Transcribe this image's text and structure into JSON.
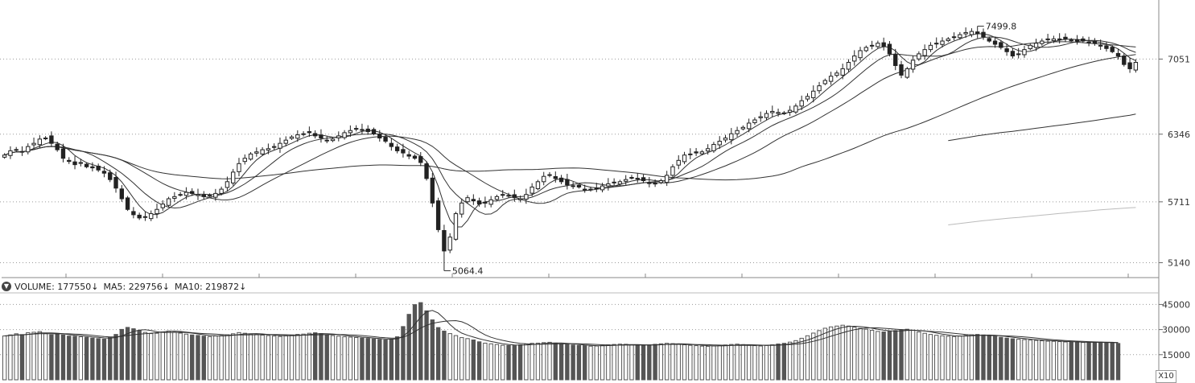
{
  "chart_data": {
    "type": "candlestick",
    "price_axis": {
      "ticks": [
        5140,
        5711,
        6346,
        7051
      ],
      "range": [
        5000,
        7560
      ]
    },
    "annotations": {
      "high": {
        "value": 7499.8,
        "label": "7499.8"
      },
      "low": {
        "value": 5064.4,
        "label": "5064.4"
      }
    },
    "price_series": {
      "close": [
        6150,
        6190,
        6200,
        6180,
        6230,
        6260,
        6300,
        6310,
        6260,
        6200,
        6120,
        6090,
        6060,
        6080,
        6040,
        6030,
        6010,
        5980,
        5920,
        5840,
        5740,
        5640,
        5590,
        5560,
        5570,
        5600,
        5640,
        5690,
        5740,
        5760,
        5780,
        5800,
        5790,
        5780,
        5760,
        5770,
        5790,
        5830,
        5900,
        5990,
        6070,
        6120,
        6160,
        6180,
        6200,
        6210,
        6230,
        6260,
        6290,
        6320,
        6340,
        6350,
        6360,
        6330,
        6310,
        6290,
        6300,
        6330,
        6360,
        6380,
        6400,
        6390,
        6370,
        6350,
        6310,
        6280,
        6230,
        6190,
        6170,
        6140,
        6120,
        6080,
        5930,
        5700,
        5450,
        5250,
        5380,
        5600,
        5700,
        5750,
        5720,
        5690,
        5700,
        5730,
        5760,
        5780,
        5770,
        5750,
        5740,
        5780,
        5850,
        5900,
        5950,
        5960,
        5930,
        5900,
        5870,
        5860,
        5850,
        5830,
        5830,
        5840,
        5860,
        5880,
        5890,
        5900,
        5920,
        5940,
        5930,
        5910,
        5890,
        5880,
        5910,
        5960,
        6040,
        6100,
        6150,
        6160,
        6170,
        6180,
        6210,
        6250,
        6280,
        6310,
        6350,
        6380,
        6410,
        6450,
        6480,
        6510,
        6540,
        6560,
        6550,
        6540,
        6570,
        6610,
        6660,
        6700,
        6750,
        6800,
        6850,
        6890,
        6920,
        6960,
        7020,
        7080,
        7130,
        7160,
        7180,
        7200,
        7170,
        7100,
        6990,
        6900,
        6960,
        7040,
        7100,
        7140,
        7180,
        7200,
        7220,
        7240,
        7260,
        7280,
        7300,
        7310,
        7290,
        7260,
        7220,
        7190,
        7160,
        7120,
        7080,
        7100,
        7140,
        7180,
        7200,
        7220,
        7240,
        7240,
        7240,
        7240,
        7230,
        7220,
        7220,
        7210,
        7200,
        7180,
        7150,
        7120,
        7080,
        7000,
        6960,
        7020
      ],
      "ma_lengths": [
        5,
        10,
        20,
        60,
        120,
        250
      ]
    },
    "volume": {
      "label": "VOLUME:",
      "value": "177550",
      "ma5_label": "MA5:",
      "ma5": "229756",
      "ma10_label": "MA10:",
      "ma10": "219872",
      "axis_ticks": [
        15000,
        30000,
        45000
      ],
      "scale": "X10",
      "values": [
        26200,
        26800,
        27500,
        27000,
        28100,
        28400,
        28800,
        27600,
        26900,
        27400,
        26800,
        26100,
        26000,
        25700,
        25400,
        24900,
        24600,
        24300,
        25200,
        27100,
        30100,
        31300,
        30500,
        29400,
        28300,
        27600,
        27800,
        28600,
        29100,
        28400,
        27900,
        27300,
        26800,
        26500,
        26100,
        25800,
        26200,
        26400,
        26900,
        27500,
        28200,
        27800,
        27300,
        27100,
        26700,
        26400,
        26100,
        25900,
        26300,
        26700,
        27100,
        27300,
        27800,
        28100,
        27600,
        26900,
        26400,
        26100,
        25700,
        25500,
        25300,
        24900,
        24700,
        24400,
        24100,
        23800,
        24300,
        25700,
        31800,
        39100,
        44900,
        46100,
        41200,
        35800,
        31200,
        29100,
        27600,
        26400,
        25200,
        24600,
        23800,
        22700,
        21900,
        21500,
        21100,
        20600,
        20500,
        20400,
        20900,
        21400,
        21800,
        21900,
        22200,
        22400,
        21900,
        21400,
        21100,
        20800,
        20500,
        20400,
        20100,
        20200,
        20500,
        20900,
        21100,
        21300,
        21200,
        20900,
        20600,
        20500,
        20800,
        21200,
        21500,
        21800,
        21600,
        21300,
        20900,
        20600,
        20400,
        20100,
        20000,
        20200,
        20500,
        20800,
        21100,
        21300,
        21000,
        20600,
        20400,
        20200,
        20500,
        20900,
        21400,
        21800,
        22500,
        23400,
        24800,
        26300,
        27900,
        29400,
        30800,
        31600,
        32100,
        32600,
        32100,
        31400,
        30800,
        30200,
        29600,
        28900,
        28600,
        29000,
        29400,
        29900,
        30200,
        29500,
        28600,
        27800,
        27100,
        26600,
        26300,
        26000,
        25800,
        26100,
        26500,
        26900,
        27100,
        26800,
        26400,
        25900,
        25400,
        24900,
        24500,
        24200,
        24000,
        23700,
        23500,
        23300,
        23100,
        23000,
        22800,
        22600,
        22500,
        22400,
        22300,
        22200,
        22300,
        22500,
        22300,
        22000,
        21700
      ]
    }
  },
  "colors": {
    "background": "#ffffff",
    "candle": "#222222",
    "ma_lines": "#333333",
    "ma_long": "#bbbbbb",
    "grid": "#9a9a9a"
  },
  "icons": {
    "volume_toggle": "chevron-down-icon",
    "down_arrow": "down-arrow-icon"
  }
}
